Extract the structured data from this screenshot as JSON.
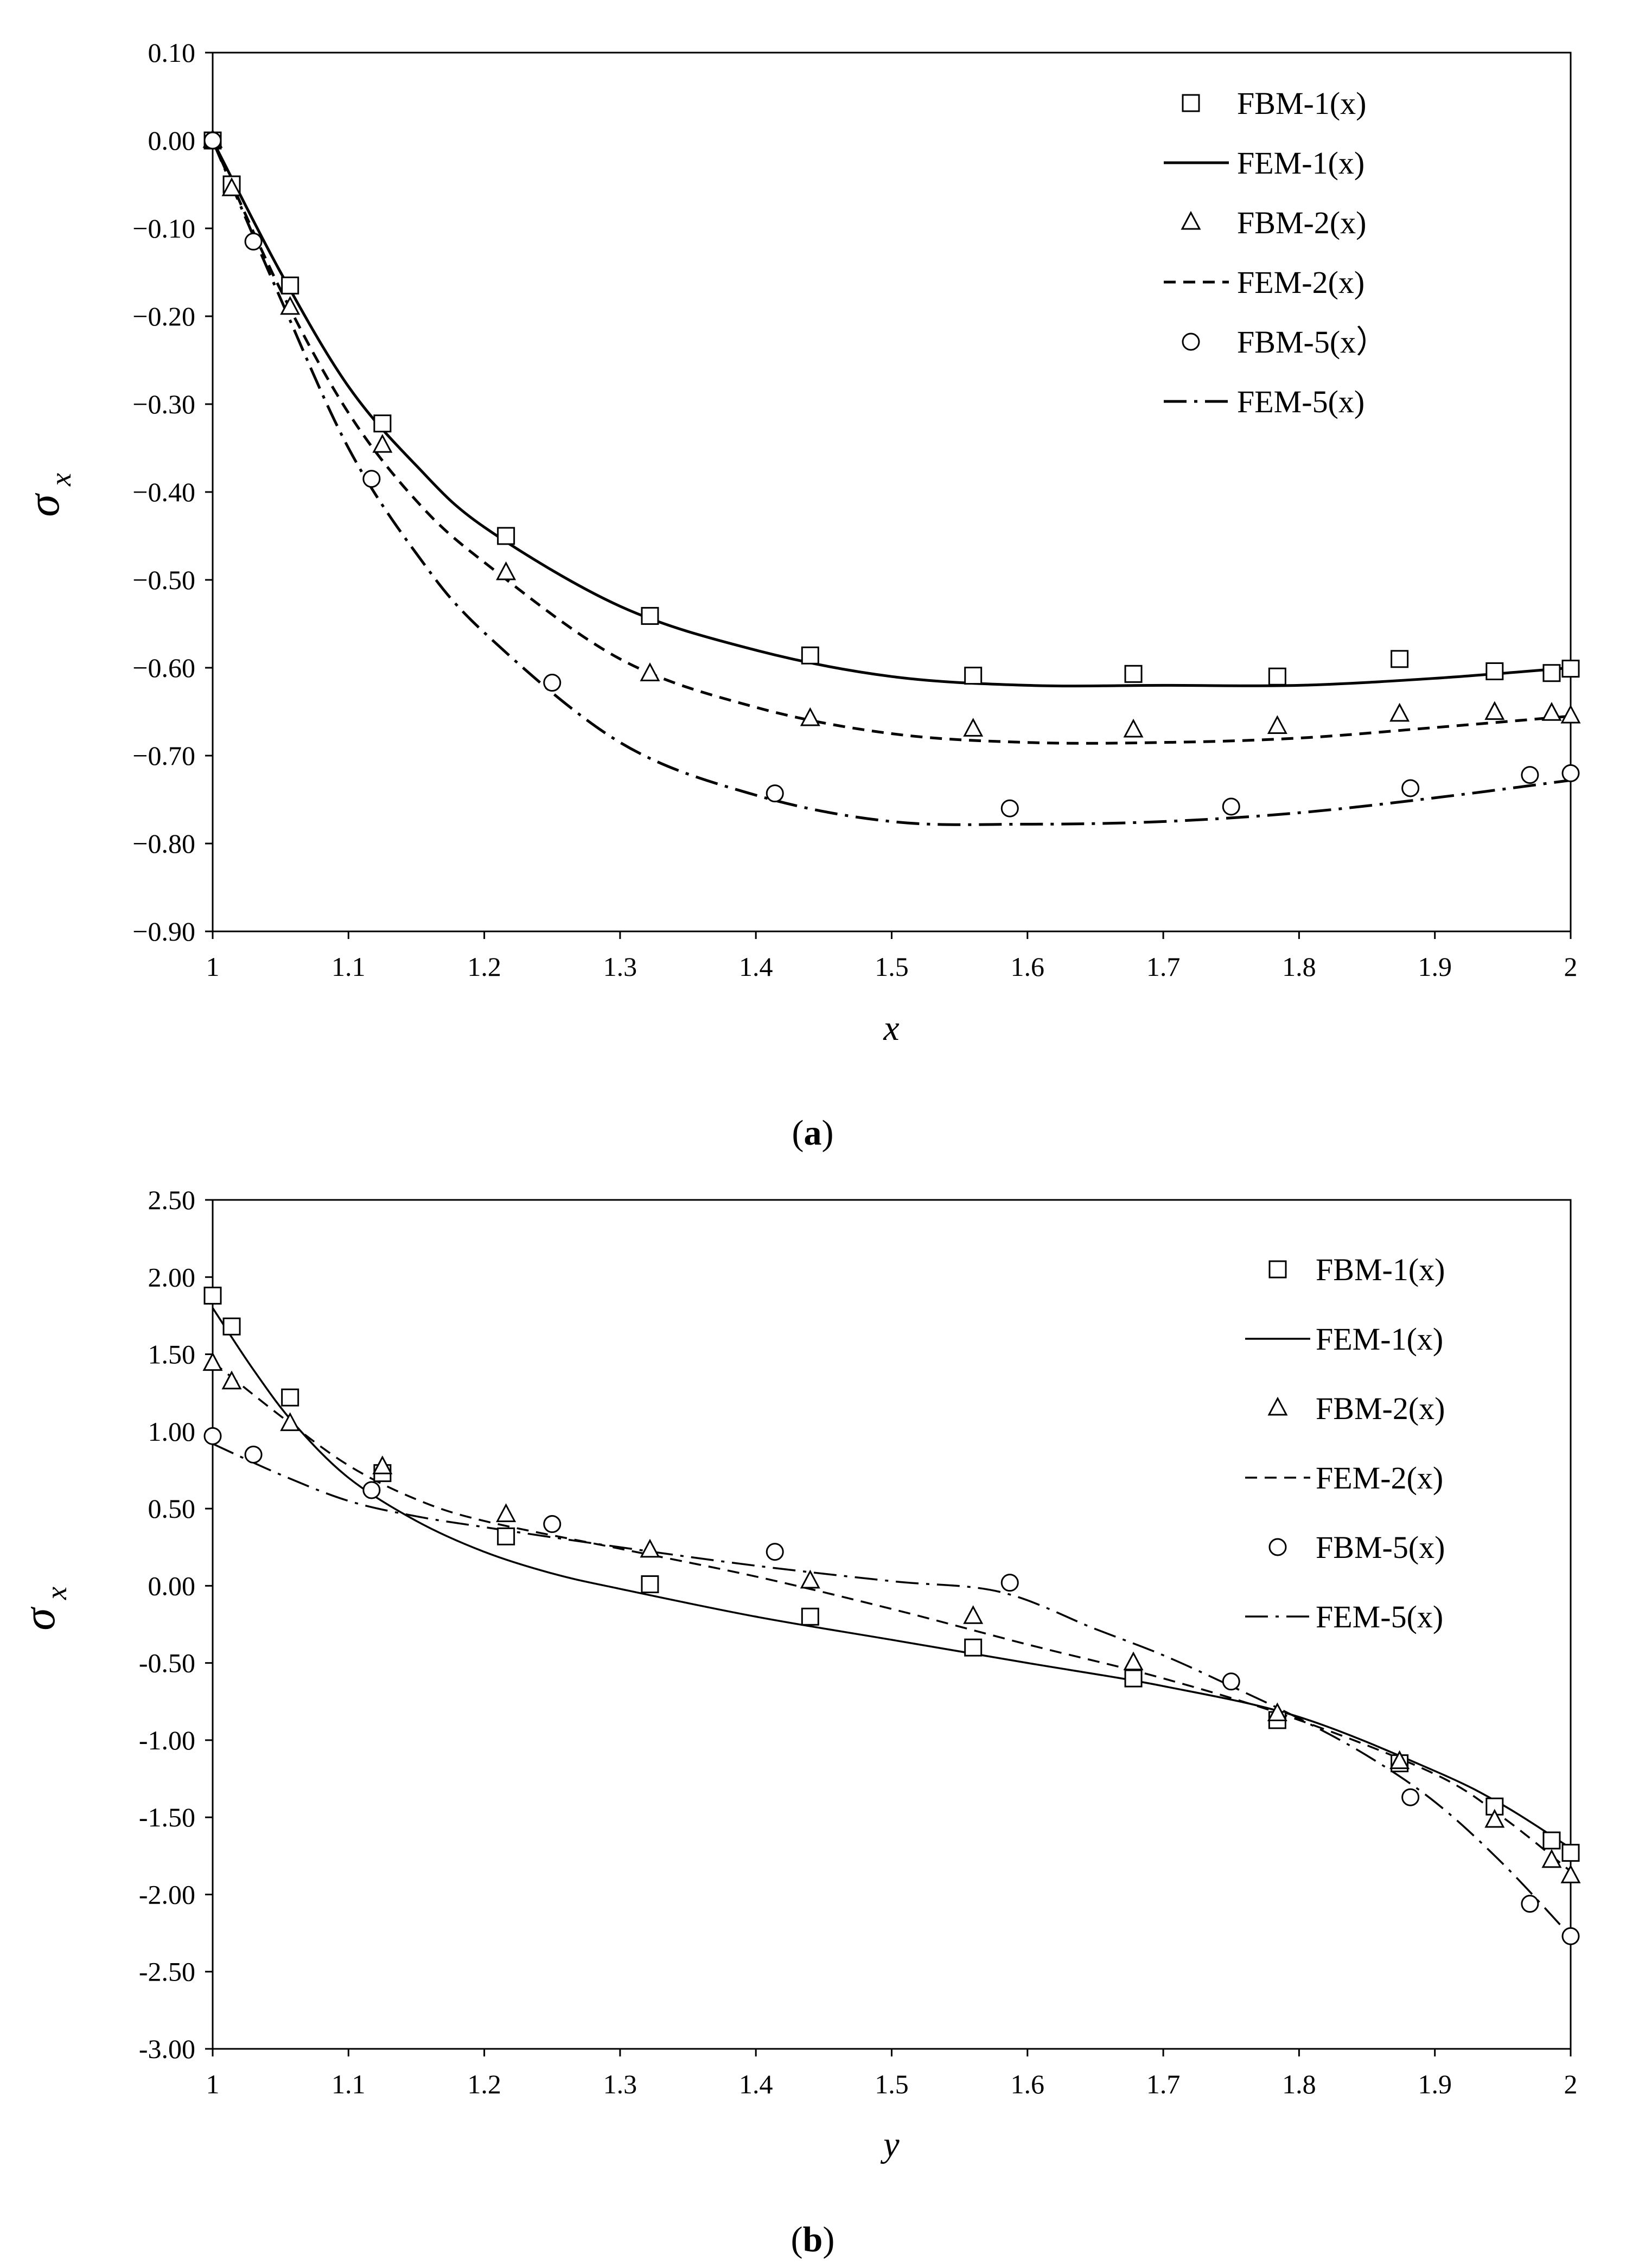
{
  "colors": {
    "ink": "#000000",
    "background": "#ffffff"
  },
  "chart_data": [
    {
      "type": "line",
      "panel_label": "a",
      "xlabel": "x",
      "ylabel_symbol": "σ",
      "ylabel_sub": "x",
      "xlim": [
        1,
        2
      ],
      "ylim": [
        -0.9,
        0.1
      ],
      "x_ticks": [
        1,
        1.1,
        1.2,
        1.3,
        1.4,
        1.5,
        1.6,
        1.7,
        1.8,
        1.9,
        2
      ],
      "x_tick_labels": [
        "1",
        "1.1",
        "1.2",
        "1.3",
        "1.4",
        "1.5",
        "1.6",
        "1.7",
        "1.8",
        "1.9",
        "2"
      ],
      "y_ticks": [
        0.1,
        0,
        -0.1,
        -0.2,
        -0.3,
        -0.4,
        -0.5,
        -0.6,
        -0.7,
        -0.8,
        -0.9
      ],
      "y_tick_labels": [
        "0.10",
        "0.00",
        "−0.10",
        "−0.20",
        "−0.30",
        "−0.40",
        "−0.50",
        "−0.60",
        "−0.70",
        "−0.80",
        "−0.90"
      ],
      "legend_position": "top-right",
      "series": [
        {
          "name": "FBM-1(x)",
          "kind": "marker",
          "marker": "square",
          "x": [
            1,
            1.014,
            1.057,
            1.125,
            1.216,
            1.322,
            1.44,
            1.56,
            1.678,
            1.784,
            1.874,
            1.944,
            1.986,
            2
          ],
          "y": [
            0,
            -0.05,
            -0.165,
            -0.322,
            -0.45,
            -0.541,
            -0.586,
            -0.609,
            -0.607,
            -0.61,
            -0.59,
            -0.604,
            -0.606,
            -0.601
          ]
        },
        {
          "name": "FEM-1(x)",
          "kind": "line",
          "dash": "solid",
          "x": [
            1,
            1.05,
            1.1,
            1.15,
            1.2,
            1.3,
            1.4,
            1.5,
            1.6,
            1.7,
            1.8,
            1.9,
            2
          ],
          "y": [
            0,
            -0.15,
            -0.28,
            -0.37,
            -0.44,
            -0.53,
            -0.58,
            -0.61,
            -0.62,
            -0.62,
            -0.62,
            -0.612,
            -0.6
          ]
        },
        {
          "name": "FBM-2(x)",
          "kind": "marker",
          "marker": "triangle",
          "x": [
            1,
            1.014,
            1.057,
            1.125,
            1.216,
            1.322,
            1.44,
            1.56,
            1.678,
            1.784,
            1.874,
            1.944,
            1.986,
            2
          ],
          "y": [
            0,
            -0.055,
            -0.19,
            -0.347,
            -0.492,
            -0.607,
            -0.658,
            -0.67,
            -0.671,
            -0.667,
            -0.653,
            -0.651,
            -0.652,
            -0.655
          ]
        },
        {
          "name": "FEM-2(x)",
          "kind": "line",
          "dash": "dashed",
          "x": [
            1,
            1.05,
            1.1,
            1.15,
            1.2,
            1.3,
            1.4,
            1.5,
            1.6,
            1.7,
            1.8,
            1.9,
            2
          ],
          "y": [
            0,
            -0.17,
            -0.31,
            -0.41,
            -0.48,
            -0.59,
            -0.645,
            -0.675,
            -0.685,
            -0.685,
            -0.68,
            -0.668,
            -0.655
          ]
        },
        {
          "name": "FBM-5(x）",
          "kind": "marker",
          "marker": "circle",
          "x": [
            1,
            1.03,
            1.117,
            1.25,
            1.414,
            1.587,
            1.75,
            1.882,
            1.97,
            2
          ],
          "y": [
            0,
            -0.115,
            -0.385,
            -0.617,
            -0.743,
            -0.76,
            -0.758,
            -0.737,
            -0.722,
            -0.72
          ]
        },
        {
          "name": "FEM-5(x)",
          "kind": "line",
          "dash": "dashdot",
          "x": [
            1,
            1.05,
            1.1,
            1.15,
            1.2,
            1.3,
            1.4,
            1.5,
            1.6,
            1.7,
            1.8,
            1.9,
            2
          ],
          "y": [
            0,
            -0.18,
            -0.35,
            -0.47,
            -0.56,
            -0.685,
            -0.745,
            -0.775,
            -0.778,
            -0.775,
            -0.765,
            -0.748,
            -0.728
          ]
        }
      ]
    },
    {
      "type": "line",
      "panel_label": "b",
      "xlabel": "y",
      "ylabel_symbol": "σ",
      "ylabel_sub": "x",
      "xlim": [
        1,
        2
      ],
      "ylim": [
        -3,
        2.5
      ],
      "x_ticks": [
        1,
        1.1,
        1.2,
        1.3,
        1.4,
        1.5,
        1.6,
        1.7,
        1.8,
        1.9,
        2
      ],
      "x_tick_labels": [
        "1",
        "1.1",
        "1.2",
        "1.3",
        "1.4",
        "1.5",
        "1.6",
        "1.7",
        "1.8",
        "1.9",
        "2"
      ],
      "y_ticks": [
        2.5,
        2,
        1.5,
        1,
        0.5,
        0,
        -0.5,
        -1,
        -1.5,
        -2,
        -2.5,
        -3
      ],
      "y_tick_labels": [
        "2.50",
        "2.00",
        "1.50",
        "1.00",
        "0.50",
        "0.00",
        "-0.50",
        "-1.00",
        "-1.50",
        "-2.00",
        "-2.50",
        "-3.00"
      ],
      "legend_position": "top-right",
      "series": [
        {
          "name": "FBM-1(x)",
          "kind": "marker",
          "marker": "square",
          "x": [
            1,
            1.014,
            1.057,
            1.125,
            1.216,
            1.322,
            1.44,
            1.56,
            1.678,
            1.784,
            1.874,
            1.944,
            1.986,
            2
          ],
          "y": [
            1.88,
            1.68,
            1.22,
            0.73,
            0.32,
            0.01,
            -0.2,
            -0.4,
            -0.6,
            -0.87,
            -1.15,
            -1.43,
            -1.65,
            -1.73
          ]
        },
        {
          "name": "FEM-1(x)",
          "kind": "line",
          "dash": "solid",
          "x": [
            1,
            1.03,
            1.06,
            1.1,
            1.15,
            1.2,
            1.25,
            1.3,
            1.4,
            1.5,
            1.6,
            1.7,
            1.8,
            1.9,
            1.95,
            2
          ],
          "y": [
            1.8,
            1.4,
            1.05,
            0.7,
            0.42,
            0.22,
            0.08,
            -0.02,
            -0.2,
            -0.35,
            -0.5,
            -0.65,
            -0.85,
            -1.2,
            -1.42,
            -1.7
          ]
        },
        {
          "name": "FBM-2(x)",
          "kind": "marker",
          "marker": "triangle",
          "x": [
            1,
            1.014,
            1.057,
            1.125,
            1.216,
            1.322,
            1.44,
            1.56,
            1.678,
            1.784,
            1.874,
            1.944,
            1.986,
            2
          ],
          "y": [
            1.44,
            1.32,
            1.05,
            0.77,
            0.46,
            0.23,
            0.03,
            -0.2,
            -0.5,
            -0.83,
            -1.14,
            -1.52,
            -1.78,
            -1.88
          ]
        },
        {
          "name": "FEM-2(x)",
          "kind": "line",
          "dash": "dashed",
          "x": [
            1,
            1.05,
            1.1,
            1.15,
            1.2,
            1.3,
            1.4,
            1.5,
            1.6,
            1.7,
            1.8,
            1.9,
            1.95,
            2
          ],
          "y": [
            1.45,
            1.1,
            0.78,
            0.56,
            0.42,
            0.24,
            0.06,
            -0.15,
            -0.38,
            -0.6,
            -0.87,
            -1.22,
            -1.5,
            -1.85
          ]
        },
        {
          "name": "FBM-5(x)",
          "kind": "marker",
          "marker": "circle",
          "x": [
            1,
            1.03,
            1.117,
            1.25,
            1.414,
            1.587,
            1.75,
            1.882,
            1.97,
            2
          ],
          "y": [
            0.97,
            0.85,
            0.62,
            0.4,
            0.22,
            0.02,
            -0.62,
            -1.37,
            -2.06,
            -2.27
          ]
        },
        {
          "name": "FEM-5(x)",
          "kind": "line",
          "dash": "dashdot",
          "x": [
            1,
            1.05,
            1.1,
            1.15,
            1.2,
            1.3,
            1.4,
            1.5,
            1.58,
            1.65,
            1.7,
            1.75,
            1.8,
            1.85,
            1.9,
            1.95,
            2
          ],
          "y": [
            0.92,
            0.72,
            0.55,
            0.45,
            0.38,
            0.25,
            0.13,
            0.03,
            -0.04,
            -0.28,
            -0.45,
            -0.65,
            -0.86,
            -1.1,
            -1.4,
            -1.8,
            -2.27
          ]
        }
      ]
    }
  ]
}
